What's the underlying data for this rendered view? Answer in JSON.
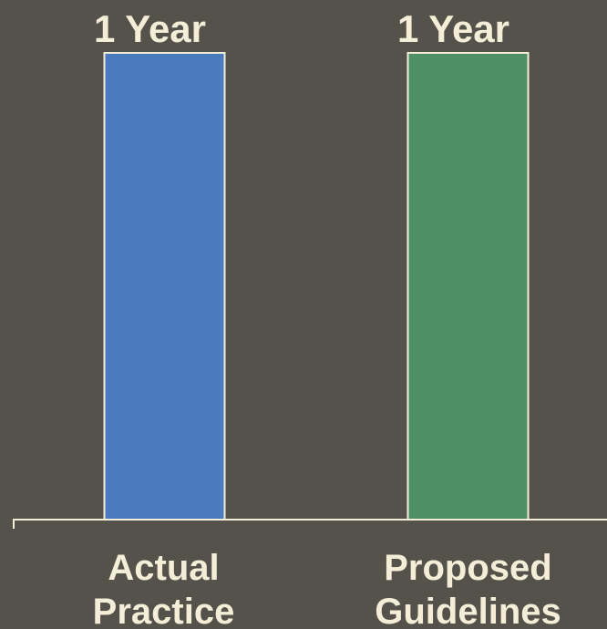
{
  "chart_data": {
    "type": "bar",
    "categories": [
      "Actual Practice",
      "Proposed Guidelines"
    ],
    "category_lines": [
      [
        "Actual",
        "Practice"
      ],
      [
        "Proposed",
        "Guidelines"
      ]
    ],
    "values": [
      1,
      1
    ],
    "data_labels": [
      "1 Year",
      "1 Year"
    ],
    "unit": "Year",
    "ylim": [
      0,
      1
    ],
    "grid": false,
    "legend": "none",
    "colors": {
      "background": "#55514b",
      "bars": [
        "#4a7bc1",
        "#4e8f68"
      ],
      "bar_outline": "#f4eed8",
      "axis": "#f4eed8",
      "text": "#f4eed8"
    }
  }
}
